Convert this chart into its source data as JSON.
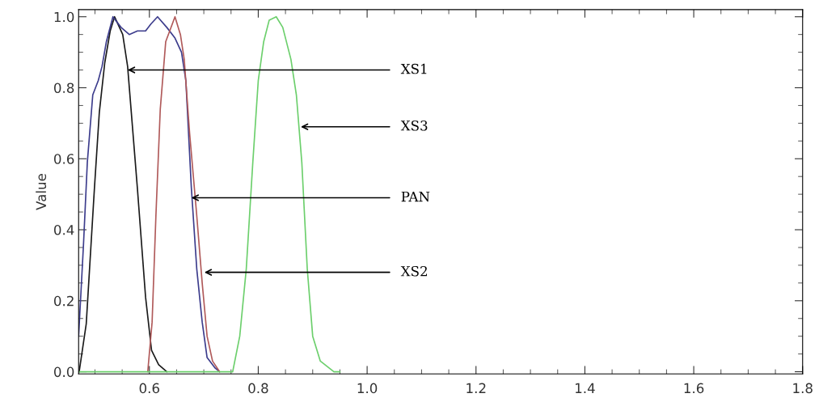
{
  "chart_data": {
    "type": "line",
    "ylabel": "Value",
    "series": [
      {
        "color": "#1a1a1a",
        "x": [
          0.471,
          0.484,
          0.499,
          0.508,
          0.518,
          0.528,
          0.536,
          0.551,
          0.56,
          0.578,
          0.593,
          0.604,
          0.617,
          0.632
        ],
        "values": [
          0.0,
          0.135,
          0.516,
          0.73,
          0.87,
          0.96,
          1.0,
          0.95,
          0.86,
          0.516,
          0.21,
          0.06,
          0.02,
          0.0
        ]
      },
      {
        "color": "#3c3c8c",
        "x": [
          0.47,
          0.479,
          0.486,
          0.496,
          0.506,
          0.513,
          0.521,
          0.533,
          0.548,
          0.563,
          0.578,
          0.593,
          0.603,
          0.615,
          0.632,
          0.647,
          0.659,
          0.667,
          0.677,
          0.687,
          0.697,
          0.706,
          0.721,
          0.729
        ],
        "values": [
          0.1,
          0.36,
          0.59,
          0.78,
          0.82,
          0.86,
          0.93,
          1.0,
          0.97,
          0.95,
          0.96,
          0.96,
          0.98,
          1.0,
          0.97,
          0.94,
          0.9,
          0.82,
          0.52,
          0.29,
          0.14,
          0.04,
          0.01,
          0.0
        ]
      },
      {
        "color": "#b05a5a",
        "x": [
          0.597,
          0.605,
          0.612,
          0.62,
          0.63,
          0.647,
          0.657,
          0.664,
          0.674,
          0.687,
          0.697,
          0.706,
          0.716,
          0.729
        ],
        "values": [
          0.0,
          0.14,
          0.44,
          0.74,
          0.93,
          1.0,
          0.95,
          0.88,
          0.67,
          0.44,
          0.25,
          0.1,
          0.03,
          0.0
        ]
      },
      {
        "color": "#6ccf6c",
        "x": [
          0.47,
          0.753,
          0.766,
          0.778,
          0.79,
          0.8,
          0.81,
          0.82,
          0.833,
          0.845,
          0.86,
          0.87,
          0.88,
          0.89,
          0.9,
          0.914,
          0.939,
          0.95
        ],
        "values": [
          0.0,
          0.0,
          0.1,
          0.29,
          0.59,
          0.82,
          0.93,
          0.99,
          1.0,
          0.97,
          0.88,
          0.78,
          0.59,
          0.29,
          0.1,
          0.03,
          0.0,
          0.0
        ]
      }
    ],
    "annotations": [
      {
        "text": "XS1",
        "x": 0.56,
        "y": 0.85
      },
      {
        "text": "XS3",
        "x": 0.878,
        "y": 0.69
      },
      {
        "text": "PAN",
        "x": 0.677,
        "y": 0.49
      },
      {
        "text": "XS2",
        "x": 0.701,
        "y": 0.28
      }
    ],
    "xlim": [
      0.47,
      1.8
    ],
    "xticks": [
      0.6,
      0.8,
      {
        "value": 1.0,
        "label": "1.0"
      },
      1.2,
      1.4,
      1.6,
      1.8
    ],
    "ylim": [
      -0.006,
      1.02
    ],
    "yticks": [
      {
        "value": 0,
        "label": "0.0"
      },
      0.2,
      0.4,
      0.6,
      0.8,
      {
        "value": 1.0,
        "label": "1.0"
      }
    ],
    "grid": false
  }
}
